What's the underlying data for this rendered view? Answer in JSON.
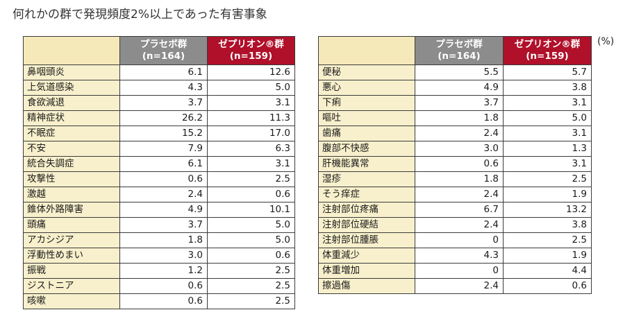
{
  "title": "何れかの群で発現頻度2%以上であった有害事象",
  "unit": "(%)",
  "columns": {
    "placebo": {
      "name": "プラセボ群",
      "n": "(n=164)"
    },
    "drug": {
      "name": "ゼプリオン®群",
      "n": "(n=159)"
    }
  },
  "colors": {
    "placebo_header": "#8c8c8c",
    "drug_header": "#b0102a",
    "name_cell": "#f8f0cc"
  },
  "left_table": [
    {
      "name": "鼻咽頭炎",
      "placebo": "6.1",
      "drug": "12.6"
    },
    {
      "name": "上気道感染",
      "placebo": "4.3",
      "drug": "5.0"
    },
    {
      "name": "食欲減退",
      "placebo": "3.7",
      "drug": "3.1"
    },
    {
      "name": "精神症状",
      "placebo": "26.2",
      "drug": "11.3"
    },
    {
      "name": "不眠症",
      "placebo": "15.2",
      "drug": "17.0"
    },
    {
      "name": "不安",
      "placebo": "7.9",
      "drug": "6.3"
    },
    {
      "name": "統合失調症",
      "placebo": "6.1",
      "drug": "3.1"
    },
    {
      "name": "攻撃性",
      "placebo": "0.6",
      "drug": "2.5"
    },
    {
      "name": "激越",
      "placebo": "2.4",
      "drug": "0.6"
    },
    {
      "name": "錐体外路障害",
      "placebo": "4.9",
      "drug": "10.1"
    },
    {
      "name": "頭痛",
      "placebo": "3.7",
      "drug": "5.0"
    },
    {
      "name": "アカシジア",
      "placebo": "1.8",
      "drug": "5.0"
    },
    {
      "name": "浮動性めまい",
      "placebo": "3.0",
      "drug": "0.6"
    },
    {
      "name": "振戦",
      "placebo": "1.2",
      "drug": "2.5"
    },
    {
      "name": "ジストニア",
      "placebo": "0.6",
      "drug": "2.5"
    },
    {
      "name": "咳嗽",
      "placebo": "0.6",
      "drug": "2.5"
    }
  ],
  "right_table": [
    {
      "name": "便秘",
      "placebo": "5.5",
      "drug": "5.7"
    },
    {
      "name": "悪心",
      "placebo": "4.9",
      "drug": "3.8"
    },
    {
      "name": "下痢",
      "placebo": "3.7",
      "drug": "3.1"
    },
    {
      "name": "嘔吐",
      "placebo": "1.8",
      "drug": "5.0"
    },
    {
      "name": "歯痛",
      "placebo": "2.4",
      "drug": "3.1"
    },
    {
      "name": "腹部不快感",
      "placebo": "3.0",
      "drug": "1.3"
    },
    {
      "name": "肝機能異常",
      "placebo": "0.6",
      "drug": "3.1"
    },
    {
      "name": "湿疹",
      "placebo": "1.8",
      "drug": "2.5"
    },
    {
      "name": "そう痒症",
      "placebo": "2.4",
      "drug": "1.9"
    },
    {
      "name": "注射部位疼痛",
      "placebo": "6.7",
      "drug": "13.2"
    },
    {
      "name": "注射部位硬結",
      "placebo": "2.4",
      "drug": "3.8"
    },
    {
      "name": "注射部位腫脹",
      "placebo": "0",
      "drug": "2.5"
    },
    {
      "name": "体重減少",
      "placebo": "4.3",
      "drug": "1.9"
    },
    {
      "name": "体重増加",
      "placebo": "0",
      "drug": "4.4"
    },
    {
      "name": "擦過傷",
      "placebo": "2.4",
      "drug": "0.6"
    }
  ]
}
